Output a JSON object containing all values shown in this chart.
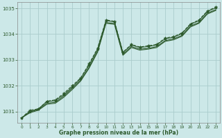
{
  "title": "Graphe pression niveau de la mer (hPa)",
  "background_color": "#cce8e8",
  "grid_color": "#aacccc",
  "line_color": "#2d5a2d",
  "xlim": [
    -0.5,
    23.5
  ],
  "ylim": [
    1030.55,
    1035.25
  ],
  "yticks": [
    1031,
    1032,
    1033,
    1034,
    1035
  ],
  "xticks": [
    0,
    1,
    2,
    3,
    4,
    5,
    6,
    7,
    8,
    9,
    10,
    11,
    12,
    13,
    14,
    15,
    16,
    17,
    18,
    19,
    20,
    21,
    22,
    23
  ],
  "series": [
    {
      "x": [
        0,
        1,
        2,
        3,
        4,
        5,
        6,
        7,
        8,
        9,
        10,
        11,
        12,
        13,
        14,
        15,
        16,
        17,
        18,
        19,
        20,
        21,
        22,
        23
      ],
      "y": [
        1030.75,
        1031.05,
        1031.1,
        1031.4,
        1031.45,
        1031.7,
        1032.0,
        1032.3,
        1032.85,
        1033.45,
        1034.55,
        1034.5,
        1033.3,
        1033.6,
        1033.5,
        1033.55,
        1033.6,
        1033.85,
        1033.9,
        1034.05,
        1034.4,
        1034.55,
        1034.9,
        1035.05
      ],
      "style": "dashed_marker"
    },
    {
      "x": [
        0,
        1,
        2,
        3,
        4,
        5,
        6,
        7,
        8,
        9,
        10,
        11,
        12,
        13,
        14,
        15,
        16,
        17,
        18,
        19,
        20,
        21,
        22,
        23
      ],
      "y": [
        1030.75,
        1031.0,
        1031.1,
        1031.38,
        1031.42,
        1031.65,
        1031.95,
        1032.28,
        1032.8,
        1033.42,
        1034.52,
        1034.48,
        1033.28,
        1033.58,
        1033.48,
        1033.52,
        1033.58,
        1033.82,
        1033.88,
        1034.02,
        1034.38,
        1034.52,
        1034.88,
        1035.02
      ],
      "style": "solid_marker"
    },
    {
      "x": [
        0,
        1,
        2,
        3,
        4,
        5,
        6,
        7,
        8,
        9,
        10,
        11,
        12,
        13,
        14,
        15,
        16,
        17,
        18,
        19,
        20,
        21,
        22,
        23
      ],
      "y": [
        1030.75,
        1030.98,
        1031.08,
        1031.32,
        1031.36,
        1031.6,
        1031.9,
        1032.22,
        1032.72,
        1033.35,
        1034.45,
        1034.42,
        1033.22,
        1033.52,
        1033.42,
        1033.45,
        1033.52,
        1033.75,
        1033.82,
        1033.95,
        1034.32,
        1034.45,
        1034.82,
        1034.95
      ],
      "style": "solid"
    },
    {
      "x": [
        0,
        1,
        2,
        3,
        4,
        5,
        6,
        7,
        8,
        9,
        10,
        11,
        12,
        13,
        14,
        15,
        16,
        17,
        18,
        19,
        20,
        21,
        22,
        23
      ],
      "y": [
        1030.75,
        1030.95,
        1031.05,
        1031.28,
        1031.32,
        1031.55,
        1031.85,
        1032.18,
        1032.68,
        1033.3,
        1034.42,
        1034.38,
        1033.18,
        1033.48,
        1033.38,
        1033.42,
        1033.48,
        1033.72,
        1033.78,
        1033.92,
        1034.28,
        1034.42,
        1034.78,
        1034.92
      ],
      "style": "solid"
    }
  ]
}
